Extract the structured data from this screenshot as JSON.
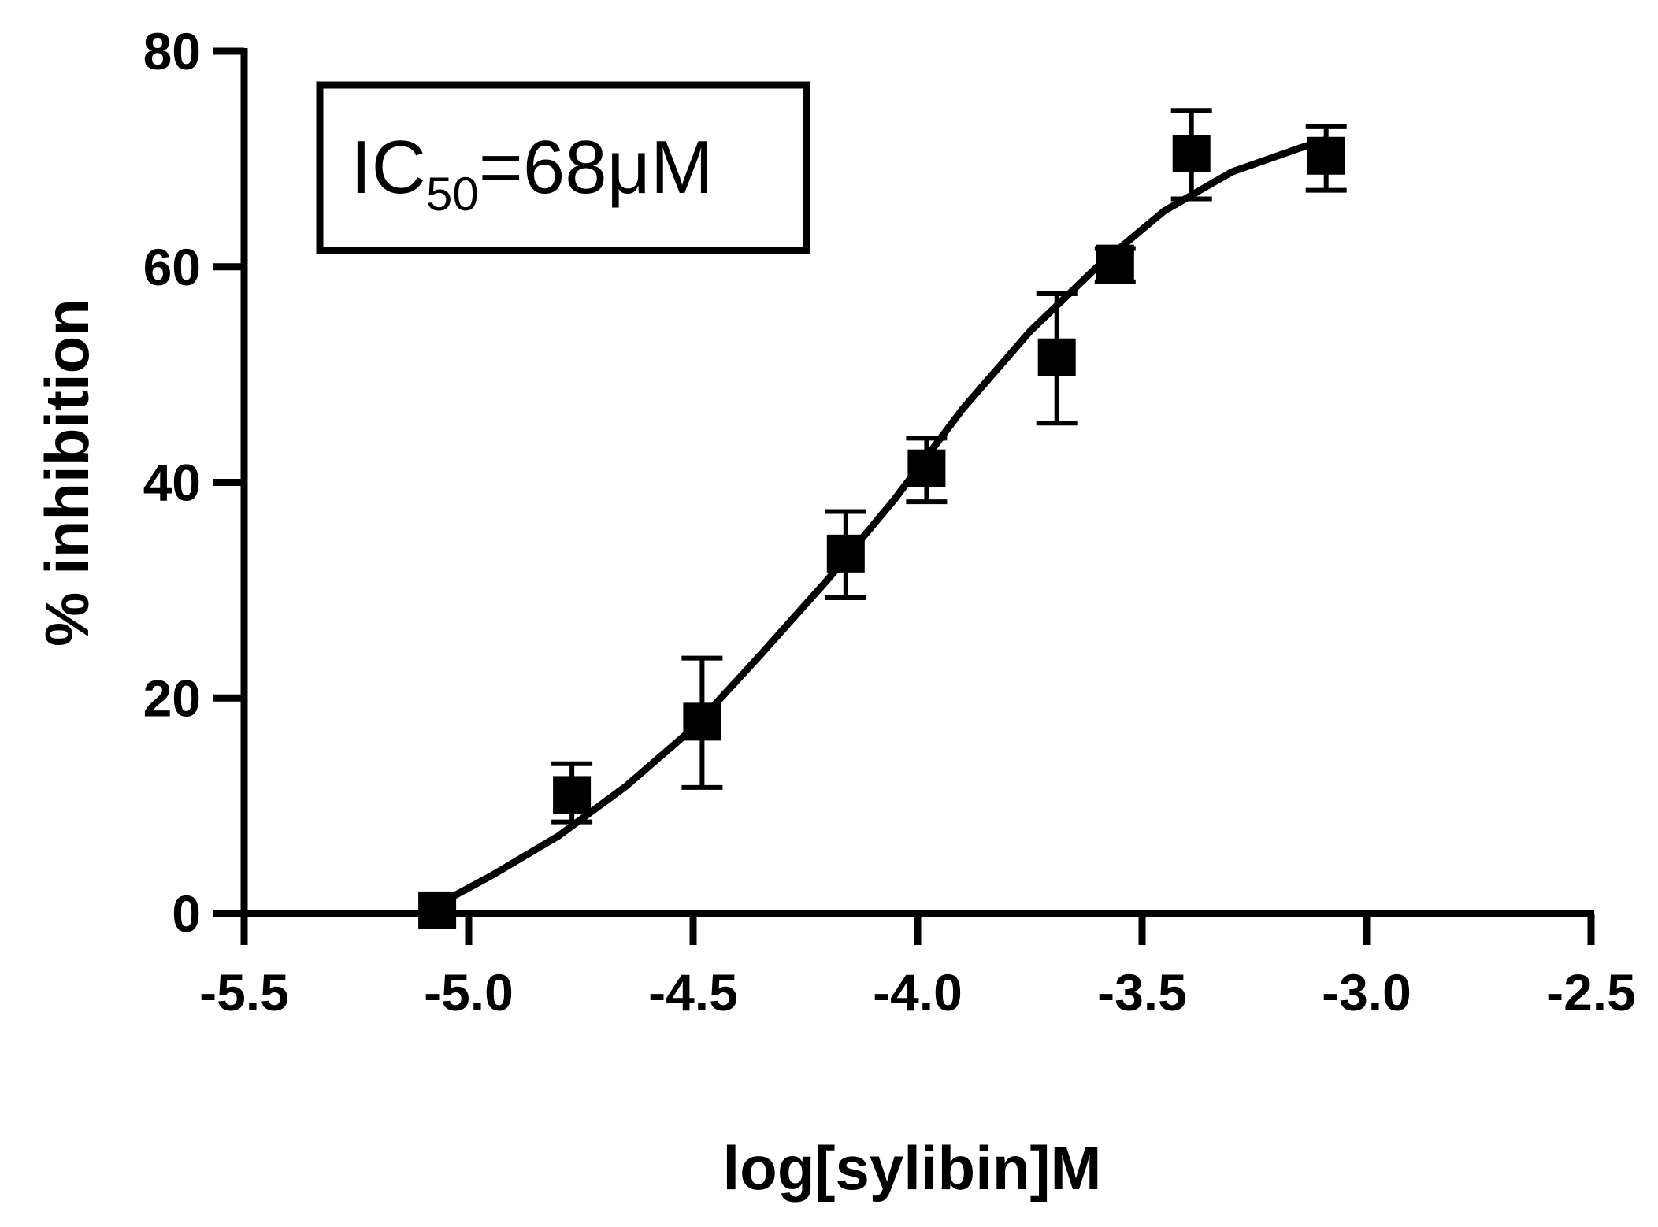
{
  "chart_data": {
    "type": "scatter",
    "title": "",
    "xlabel": "log[sylibin]M",
    "ylabel": "% inhibition",
    "xlim": [
      -5.5,
      -2.5
    ],
    "ylim": [
      0,
      80
    ],
    "x_ticks": [
      -5.5,
      -5.0,
      -4.5,
      -4.0,
      -3.5,
      -3.0,
      -2.5
    ],
    "x_tick_labels": [
      "-5.5",
      "-5.0",
      "-4.5",
      "-4.0",
      "-3.5",
      "-3.0",
      "-2.5"
    ],
    "y_ticks": [
      0,
      20,
      40,
      60,
      80
    ],
    "y_tick_labels": [
      "0",
      "20",
      "40",
      "60",
      "80"
    ],
    "grid": false,
    "legend": "none",
    "annotation": {
      "main": "IC",
      "sub": "50",
      "rest": "=68μM"
    },
    "color": "#000000",
    "series": [
      {
        "x": [
          -5.07,
          -4.77,
          -4.48,
          -4.16,
          -3.98,
          -3.69,
          -3.56,
          -3.39,
          -3.09
        ],
        "y": [
          0.3,
          11.0,
          17.8,
          33.4,
          41.3,
          51.6,
          60.3,
          70.5,
          70.3
        ],
        "error_low": [
          0,
          8.5,
          11.7,
          29.3,
          38.2,
          45.5,
          58.6,
          66.3,
          67.1
        ],
        "error_high": [
          0,
          13.9,
          23.7,
          37.3,
          44.1,
          57.5,
          61.7,
          74.5,
          73.0
        ]
      }
    ],
    "fit_curve": {
      "model": "sigmoidal dose-response",
      "x": [
        -5.07,
        -4.95,
        -4.8,
        -4.65,
        -4.5,
        -4.35,
        -4.2,
        -4.05,
        -3.9,
        -3.75,
        -3.6,
        -3.45,
        -3.3,
        -3.15,
        -3.09
      ],
      "y": [
        0.8,
        3.5,
        7.2,
        11.8,
        17.2,
        24.0,
        31.0,
        38.5,
        46.8,
        54.0,
        60.0,
        65.2,
        68.8,
        71.0,
        71.8
      ]
    }
  }
}
